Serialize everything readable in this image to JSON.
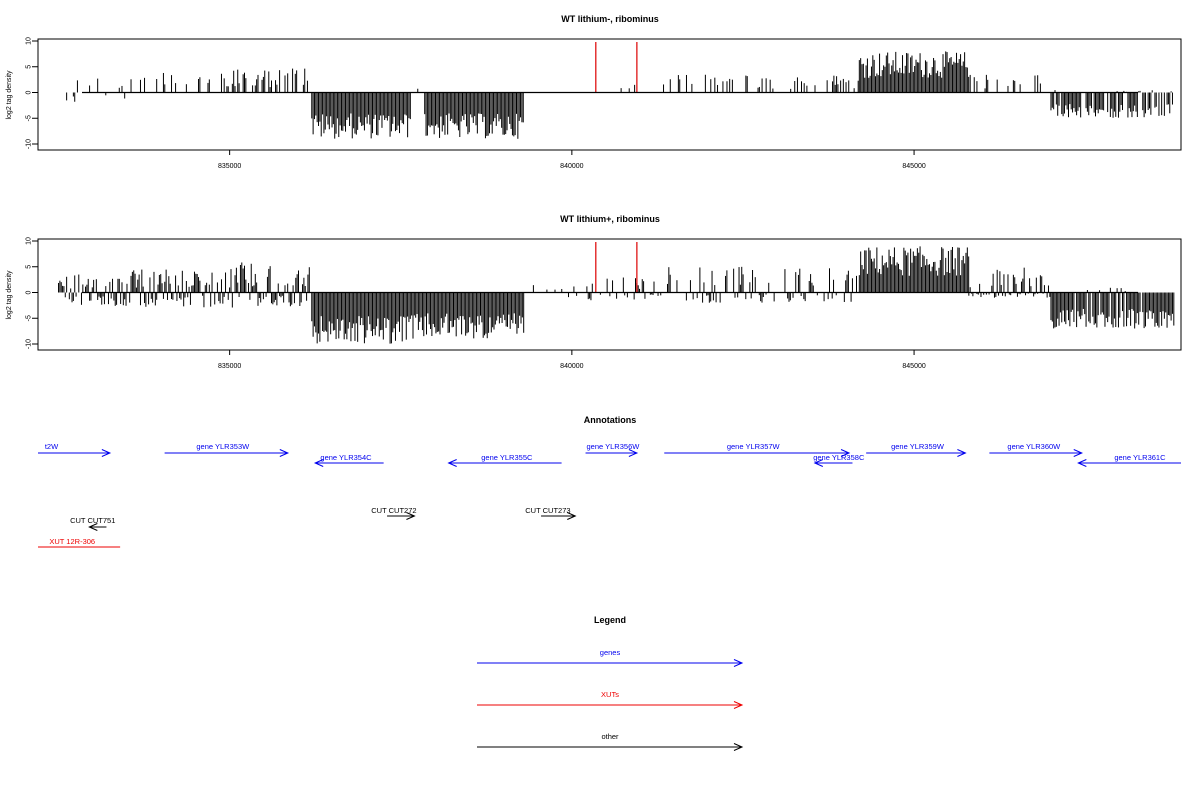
{
  "chart_data": [
    {
      "type": "bar",
      "title": "WT lithium-, ribominus",
      "ylabel": "log2 tag density",
      "xlabel": "",
      "xlim": [
        832200,
        848900
      ],
      "ylim": [
        -11,
        11
      ],
      "yticks": [
        10,
        5,
        0,
        -5,
        -10
      ],
      "xticks": [
        835000,
        840000,
        845000
      ],
      "xtick_labels": [
        "835000",
        "840000",
        "845000"
      ],
      "markers": [
        840350,
        840950
      ],
      "marker_color": "#dd0000",
      "bar_color": "#000000",
      "segments": [
        {
          "from": 832500,
          "to": 833500,
          "min": -2,
          "max": 3,
          "density": 0.25
        },
        {
          "from": 833500,
          "to": 835000,
          "min": 0,
          "max": 4,
          "density": 0.25
        },
        {
          "from": 835000,
          "to": 835900,
          "min": 0,
          "max": 4.5,
          "density": 0.5
        },
        {
          "from": 835900,
          "to": 836200,
          "min": 0,
          "max": 5,
          "density": 0.35
        },
        {
          "from": 836200,
          "to": 837650,
          "min": -9,
          "max": 0,
          "density": 1
        },
        {
          "from": 837650,
          "to": 837850,
          "min": 0,
          "max": 1.5,
          "density": 0.15
        },
        {
          "from": 837850,
          "to": 839300,
          "min": -9,
          "max": 0,
          "density": 1
        },
        {
          "from": 840700,
          "to": 840950,
          "min": 0,
          "max": 2,
          "density": 0.3
        },
        {
          "from": 841300,
          "to": 843000,
          "min": 0,
          "max": 3.5,
          "density": 0.3
        },
        {
          "from": 843000,
          "to": 844200,
          "min": 0,
          "max": 3.5,
          "density": 0.2
        },
        {
          "from": 844200,
          "to": 845800,
          "min": 0,
          "max": 8,
          "density": 1
        },
        {
          "from": 845800,
          "to": 847000,
          "min": 0,
          "max": 3.5,
          "density": 0.3
        },
        {
          "from": 847000,
          "to": 848800,
          "min": -5,
          "max": 0.5,
          "density": 0.85
        }
      ]
    },
    {
      "type": "bar",
      "title": "WT lithium+, ribominus",
      "ylabel": "log2 tag density",
      "xlabel": "",
      "xlim": [
        832200,
        848900
      ],
      "ylim": [
        -11,
        11
      ],
      "yticks": [
        10,
        5,
        0,
        -5,
        -10
      ],
      "xticks": [
        835000,
        840000,
        845000
      ],
      "xtick_labels": [
        "835000",
        "840000",
        "845000"
      ],
      "markers": [
        840350,
        840950
      ],
      "marker_color": "#dd0000",
      "bar_color": "#000000",
      "segments": [
        {
          "from": 832500,
          "to": 833500,
          "min": -3,
          "max": 3.5,
          "density": 0.9
        },
        {
          "from": 833500,
          "to": 835000,
          "min": -3,
          "max": 4.5,
          "density": 0.9
        },
        {
          "from": 835000,
          "to": 836200,
          "min": -3,
          "max": 6,
          "density": 0.9
        },
        {
          "from": 836200,
          "to": 837600,
          "min": -10,
          "max": 0,
          "density": 1
        },
        {
          "from": 837600,
          "to": 839300,
          "min": -9,
          "max": 0,
          "density": 1
        },
        {
          "from": 839300,
          "to": 840200,
          "min": -1,
          "max": 1.5,
          "density": 0.15
        },
        {
          "from": 840200,
          "to": 841200,
          "min": -1.5,
          "max": 3,
          "density": 0.4
        },
        {
          "from": 841200,
          "to": 844200,
          "min": -2,
          "max": 5,
          "density": 0.5
        },
        {
          "from": 844200,
          "to": 845800,
          "min": 0,
          "max": 9,
          "density": 1
        },
        {
          "from": 845800,
          "to": 847000,
          "min": -1,
          "max": 5,
          "density": 0.7
        },
        {
          "from": 847000,
          "to": 848800,
          "min": -7,
          "max": 1,
          "density": 0.95
        }
      ]
    },
    {
      "type": "other",
      "title": "Annotations",
      "features": [
        {
          "label": "t2W",
          "class": "gene",
          "strand": "+",
          "start": 832200,
          "end": 833250,
          "label_pos": 832300,
          "row": 0
        },
        {
          "label": "gene YLR353W",
          "class": "gene",
          "strand": "+",
          "start": 834050,
          "end": 835850,
          "label_pos": 834900,
          "row": 0
        },
        {
          "label": "gene YLR354C",
          "class": "gene",
          "strand": "-",
          "start": 836250,
          "end": 837250,
          "label_pos": 836700,
          "row": 1
        },
        {
          "label": "gene YLR355C",
          "class": "gene",
          "strand": "-",
          "start": 838200,
          "end": 839850,
          "label_pos": 839050,
          "row": 1
        },
        {
          "label": "gene YLR356W",
          "class": "gene",
          "strand": "+",
          "start": 840200,
          "end": 840950,
          "label_pos": 840600,
          "row": 0
        },
        {
          "label": "gene YLR357W",
          "class": "gene",
          "strand": "+",
          "start": 841350,
          "end": 844050,
          "label_pos": 842650,
          "row": 0
        },
        {
          "label": "gene YLR358C",
          "class": "gene",
          "strand": "-",
          "start": 843550,
          "end": 844100,
          "label_pos": 843900,
          "row": 1
        },
        {
          "label": "gene YLR359W",
          "class": "gene",
          "strand": "+",
          "start": 844300,
          "end": 845750,
          "label_pos": 845050,
          "row": 0
        },
        {
          "label": "gene YLR360W",
          "class": "gene",
          "strand": "+",
          "start": 846100,
          "end": 847450,
          "label_pos": 846750,
          "row": 0
        },
        {
          "label": "gene YLR361C",
          "class": "gene",
          "strand": "-",
          "start": 847400,
          "end": 848900,
          "label_pos": 848300,
          "row": 1
        },
        {
          "label": "CUT CUT751",
          "class": "other",
          "strand": "-",
          "start": 832950,
          "end": 833200,
          "label_pos": 833000,
          "row": 2
        },
        {
          "label": "CUT CUT272",
          "class": "other",
          "strand": "+",
          "start": 837300,
          "end": 837700,
          "label_pos": 837400,
          "row": 3
        },
        {
          "label": "CUT CUT273",
          "class": "other",
          "strand": "+",
          "start": 839550,
          "end": 840050,
          "label_pos": 839650,
          "row": 3
        },
        {
          "label": "XUT 12R-306",
          "class": "XUT",
          "strand": "none",
          "start": 832200,
          "end": 833400,
          "label_pos": 832700,
          "row": 4
        }
      ]
    },
    {
      "type": "other",
      "title": "Legend",
      "legend": [
        {
          "label": "genes",
          "color": "#0000ee"
        },
        {
          "label": "XUTs",
          "color": "#ee0000"
        },
        {
          "label": "other",
          "color": "#000000"
        }
      ]
    }
  ],
  "colors": {
    "gene": "#0000ee",
    "XUT": "#ee0000",
    "other": "#000000"
  }
}
